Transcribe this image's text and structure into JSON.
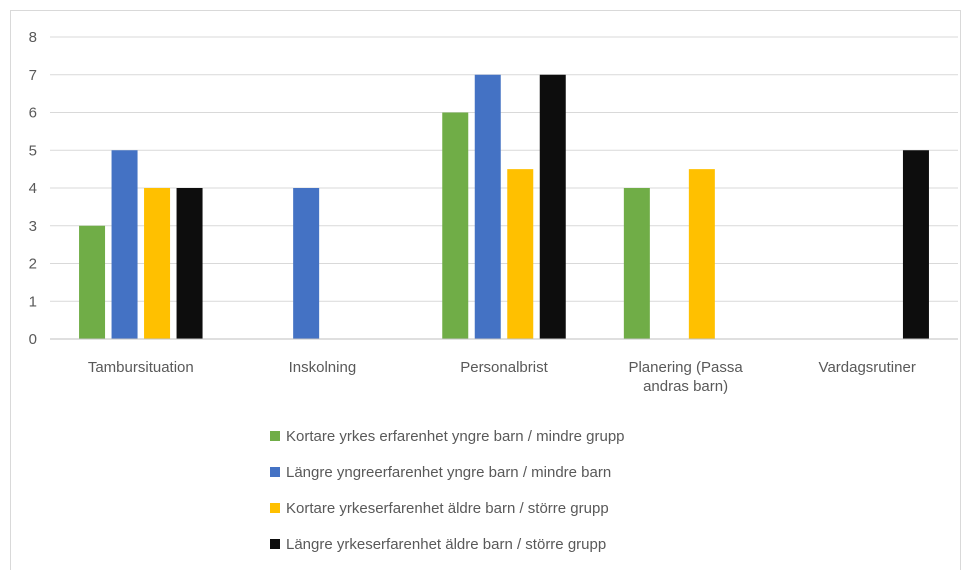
{
  "chart_data": {
    "type": "bar",
    "categories": [
      [
        "Tambursituation"
      ],
      [
        "Inskolning"
      ],
      [
        "Personalbrist"
      ],
      [
        "Planering (Passa",
        "andras barn)"
      ],
      [
        "Vardagsrutiner"
      ]
    ],
    "ylim": [
      0,
      8
    ],
    "yticks": [
      "0",
      "1",
      "2",
      "3",
      "4",
      "5",
      "6",
      "7",
      "8"
    ],
    "grid": true,
    "legend_position": "bottom",
    "series": [
      {
        "name": "Kortare yrkes erfarenhet yngre barn / mindre grupp",
        "color": "#70ad47",
        "values": [
          3,
          null,
          6,
          4,
          null
        ]
      },
      {
        "name": "Längre yngreerfarenhet yngre barn / mindre barn",
        "color": "#4472c4",
        "values": [
          5,
          4,
          7,
          null,
          null
        ]
      },
      {
        "name": "Kortare yrkeserfarenhet äldre barn / större grupp",
        "color": "#ffc000",
        "values": [
          4,
          null,
          4.5,
          4.5,
          null
        ]
      },
      {
        "name": "Längre yrkeserfarenhet äldre barn / större grupp",
        "color": "#0d0d0d",
        "values": [
          4,
          null,
          7,
          null,
          5
        ]
      }
    ]
  }
}
